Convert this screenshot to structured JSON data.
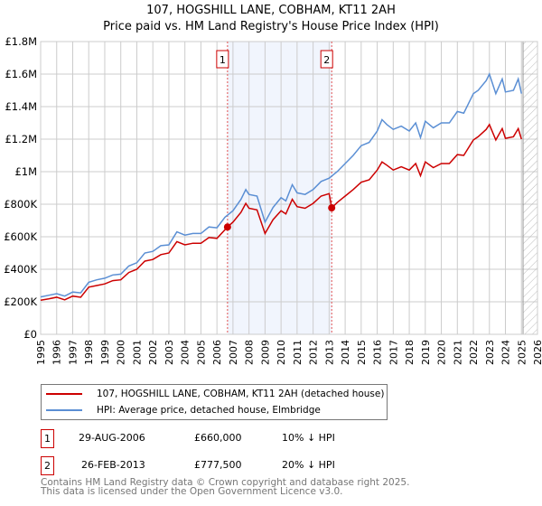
{
  "chart_data": {
    "type": "line",
    "title": "107, HOGSHILL LANE, COBHAM, KT11 2AH",
    "subtitle": "Price paid vs. HM Land Registry's House Price Index (HPI)",
    "xlim": [
      1995,
      2026
    ],
    "ylim": [
      0,
      1800000
    ],
    "y_ticks": [
      {
        "v": 0,
        "label": "£0"
      },
      {
        "v": 200000,
        "label": "£200K"
      },
      {
        "v": 400000,
        "label": "£400K"
      },
      {
        "v": 600000,
        "label": "£600K"
      },
      {
        "v": 800000,
        "label": "£800K"
      },
      {
        "v": 1000000,
        "label": "£1M"
      },
      {
        "v": 1200000,
        "label": "£1.2M"
      },
      {
        "v": 1400000,
        "label": "£1.4M"
      },
      {
        "v": 1600000,
        "label": "£1.6M"
      },
      {
        "v": 1800000,
        "label": "£1.8M"
      }
    ],
    "x_ticks": [
      "1995",
      "1996",
      "1997",
      "1998",
      "1999",
      "2000",
      "2001",
      "2002",
      "2003",
      "2004",
      "2005",
      "2006",
      "2007",
      "2008",
      "2009",
      "2010",
      "2011",
      "2012",
      "2013",
      "2014",
      "2015",
      "2016",
      "2017",
      "2018",
      "2019",
      "2020",
      "2021",
      "2022",
      "2023",
      "2024",
      "2025",
      "2026"
    ],
    "grid": true,
    "shaded_range": [
      2006.66,
      2013.16
    ],
    "forecast_hatch_from": 2025.1,
    "series": [
      {
        "name": "HPI: Average price, detached house, Elmbridge",
        "color": "#5b8fd4",
        "x": [
          1995,
          1995.5,
          1996,
          1996.5,
          1997,
          1997.5,
          1998,
          1998.5,
          1999,
          1999.5,
          2000,
          2000.5,
          2001,
          2001.5,
          2002,
          2002.5,
          2003,
          2003.5,
          2004,
          2004.5,
          2005,
          2005.5,
          2006,
          2006.5,
          2007,
          2007.5,
          2007.8,
          2008,
          2008.5,
          2009,
          2009.5,
          2010,
          2010.3,
          2010.7,
          2011,
          2011.5,
          2012,
          2012.5,
          2013,
          2013.5,
          2014,
          2014.5,
          2015,
          2015.5,
          2016,
          2016.3,
          2016.6,
          2017,
          2017.5,
          2018,
          2018.4,
          2018.7,
          2019,
          2019.5,
          2020,
          2020.5,
          2021,
          2021.4,
          2022,
          2022.3,
          2022.8,
          2023,
          2023.4,
          2023.8,
          2024,
          2024.5,
          2024.8,
          2025
        ],
        "y": [
          230000,
          240000,
          250000,
          235000,
          260000,
          255000,
          320000,
          335000,
          345000,
          365000,
          370000,
          420000,
          440000,
          500000,
          510000,
          545000,
          550000,
          630000,
          610000,
          620000,
          620000,
          660000,
          655000,
          720000,
          760000,
          830000,
          890000,
          860000,
          850000,
          690000,
          780000,
          840000,
          820000,
          920000,
          870000,
          860000,
          890000,
          940000,
          960000,
          1000000,
          1050000,
          1100000,
          1160000,
          1180000,
          1250000,
          1320000,
          1290000,
          1260000,
          1280000,
          1250000,
          1300000,
          1210000,
          1310000,
          1270000,
          1300000,
          1300000,
          1370000,
          1360000,
          1480000,
          1500000,
          1560000,
          1600000,
          1480000,
          1570000,
          1490000,
          1500000,
          1570000,
          1480000
        ]
      },
      {
        "name": "107, HOGSHILL LANE, COBHAM, KT11 2AH (detached house)",
        "color": "#cc0000",
        "x": [
          1995,
          1995.5,
          1996,
          1996.5,
          1997,
          1997.5,
          1998,
          1998.5,
          1999,
          1999.5,
          2000,
          2000.5,
          2001,
          2001.5,
          2002,
          2002.5,
          2003,
          2003.5,
          2004,
          2004.5,
          2005,
          2005.5,
          2006,
          2006.66,
          2007,
          2007.5,
          2007.8,
          2008,
          2008.5,
          2009,
          2009.5,
          2010,
          2010.3,
          2010.7,
          2011,
          2011.5,
          2012,
          2012.5,
          2013,
          2013.16,
          2013.5,
          2014,
          2014.5,
          2015,
          2015.5,
          2016,
          2016.3,
          2016.6,
          2017,
          2017.5,
          2018,
          2018.4,
          2018.7,
          2019,
          2019.5,
          2020,
          2020.5,
          2021,
          2021.4,
          2022,
          2022.3,
          2022.8,
          2023,
          2023.4,
          2023.8,
          2024,
          2024.5,
          2024.8,
          2025
        ],
        "y": [
          210000,
          218000,
          228000,
          212000,
          235000,
          228000,
          290000,
          300000,
          310000,
          330000,
          335000,
          380000,
          400000,
          450000,
          460000,
          490000,
          500000,
          570000,
          550000,
          560000,
          560000,
          595000,
          590000,
          660000,
          690000,
          750000,
          805000,
          775000,
          765000,
          620000,
          705000,
          760000,
          740000,
          830000,
          785000,
          775000,
          805000,
          850000,
          865000,
          777500,
          810000,
          850000,
          890000,
          935000,
          950000,
          1010000,
          1060000,
          1040000,
          1010000,
          1030000,
          1010000,
          1050000,
          975000,
          1060000,
          1025000,
          1050000,
          1050000,
          1105000,
          1100000,
          1195000,
          1215000,
          1260000,
          1290000,
          1195000,
          1265000,
          1205000,
          1215000,
          1265000,
          1200000
        ]
      }
    ],
    "sales": [
      {
        "id": "1",
        "x": 2006.66,
        "y": 660000
      },
      {
        "id": "2",
        "x": 2013.16,
        "y": 777500
      }
    ]
  },
  "legend": {
    "property": "107, HOGSHILL LANE, COBHAM, KT11 2AH (detached house)",
    "hpi": "HPI: Average price, detached house, Elmbridge"
  },
  "transactions": [
    {
      "id": "1",
      "date": "29-AUG-2006",
      "price": "£660,000",
      "delta": "10% ↓ HPI"
    },
    {
      "id": "2",
      "date": "26-FEB-2013",
      "price": "£777,500",
      "delta": "20% ↓ HPI"
    }
  ],
  "footer": {
    "line1": "Contains HM Land Registry data © Crown copyright and database right 2025.",
    "line2": "This data is licensed under the Open Government Licence v3.0."
  }
}
